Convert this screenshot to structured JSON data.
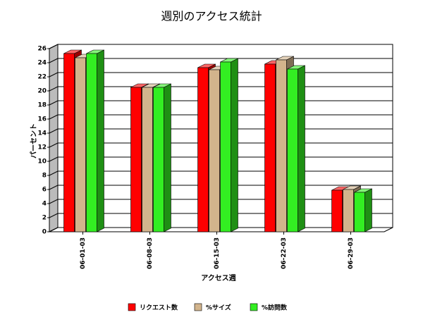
{
  "chart_data": {
    "type": "bar3d",
    "title": "週別のアクセス統計",
    "x_label": "アクセス週",
    "y_label": "パーセント",
    "categories": [
      "06-01-03",
      "06-08-03",
      "06-15-03",
      "06-22-03",
      "06-29-03"
    ],
    "series": [
      {
        "name": "リクエスト数",
        "color": "#ff0000",
        "values": [
          25.3,
          20.5,
          23.3,
          23.8,
          5.9
        ]
      },
      {
        "name": "%サイズ",
        "color": "#d2b48c",
        "values": [
          24.7,
          20.5,
          23.0,
          24.4,
          6.0
        ]
      },
      {
        "name": "%訪問数",
        "color": "#33ee22",
        "values": [
          25.3,
          20.5,
          24.1,
          23.1,
          5.6
        ]
      }
    ],
    "ylim": [
      0,
      26
    ],
    "yticks": [
      0,
      2,
      4,
      6,
      8,
      10,
      12,
      14,
      16,
      18,
      20,
      22,
      24,
      26
    ],
    "grid": true
  }
}
